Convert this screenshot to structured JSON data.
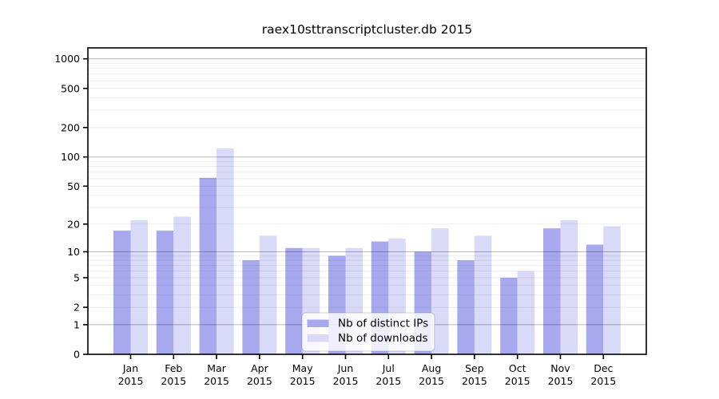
{
  "chart_data": {
    "type": "bar",
    "title": "raex10sttranscriptcluster.db 2015",
    "xlabel": "",
    "ylabel": "",
    "categories": [
      "Jan",
      "Feb",
      "Mar",
      "Apr",
      "May",
      "Jun",
      "Jul",
      "Aug",
      "Sep",
      "Oct",
      "Nov",
      "Dec"
    ],
    "year_label": "2015",
    "series": [
      {
        "name": "Nb of distinct IPs",
        "color": "#a8a8ee",
        "values": [
          17,
          17,
          61,
          8,
          11,
          9,
          13,
          10,
          8,
          5,
          18,
          12
        ]
      },
      {
        "name": "Nb of downloads",
        "color": "#d9d9f8",
        "values": [
          22,
          24,
          122,
          15,
          11,
          11,
          14,
          18,
          15,
          6,
          22,
          19
        ]
      }
    ],
    "yscale": "log10(value+1)",
    "yticks": [
      0,
      1,
      2,
      5,
      10,
      20,
      50,
      100,
      200,
      500,
      1000
    ],
    "yticks_minor": [
      3,
      4,
      6,
      7,
      8,
      9,
      30,
      40,
      60,
      70,
      80,
      90,
      300,
      400,
      600,
      700,
      800,
      900
    ],
    "decade_gridlines": [
      1,
      10,
      100,
      1000
    ],
    "ylim": [
      0,
      1290
    ],
    "grid": true,
    "legend_position": "bottom-center-inside",
    "colors": {
      "grid_minor": "rgba(0,0,0,0.07)",
      "grid_decade": "rgba(0,0,0,0.28)",
      "spine": "#000000",
      "legend_bg": "rgba(255,255,255,0.82)",
      "legend_border": "rgba(120,120,120,0.35)"
    }
  }
}
